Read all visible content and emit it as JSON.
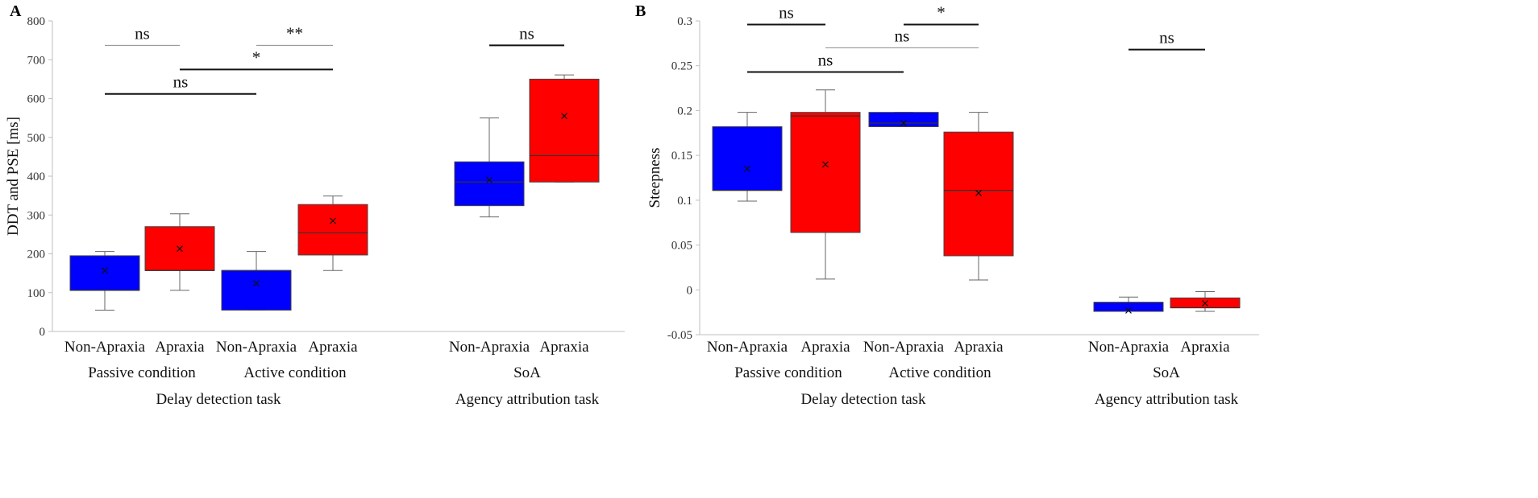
{
  "colors": {
    "non_apraxia": "#0000ff",
    "apraxia": "#ff0000",
    "axis": "#bfbfbf",
    "text": "#111111"
  },
  "chart_data": [
    {
      "panel_label": "A",
      "type": "boxplot",
      "ylabel": "DDT and PSE [ms]",
      "ylim": [
        0,
        800
      ],
      "yticks": [
        "0",
        "100",
        "200",
        "300",
        "400",
        "500",
        "600",
        "700",
        "800"
      ],
      "ytick_values": [
        0,
        100,
        200,
        300,
        400,
        500,
        600,
        700,
        800
      ],
      "categories": [
        "Non-Apraxia",
        "Apraxia",
        "Non-Apraxia",
        "Apraxia",
        "Non-Apraxia",
        "Apraxia"
      ],
      "conditions": [
        "Passive condition",
        "Active condition",
        "SoA"
      ],
      "tasks": [
        "Delay detection task",
        "Agency attribution task"
      ],
      "boxes": [
        {
          "group": "Non-Apraxia",
          "whisker_low": 55,
          "q1": 106,
          "median": 106,
          "q3": 195,
          "whisker_high": 206,
          "mean": 157
        },
        {
          "group": "Apraxia",
          "whisker_low": 106,
          "q1": 157,
          "median": 157,
          "q3": 270,
          "whisker_high": 303,
          "mean": 213
        },
        {
          "group": "Non-Apraxia",
          "whisker_low": 55,
          "q1": 55,
          "median": 157,
          "q3": 157,
          "whisker_high": 206,
          "mean": 124
        },
        {
          "group": "Apraxia",
          "whisker_low": 157,
          "q1": 197,
          "median": 254,
          "q3": 327,
          "whisker_high": 349,
          "mean": 285
        },
        {
          "group": "Non-Apraxia",
          "whisker_low": 295,
          "q1": 324,
          "median": 385,
          "q3": 437,
          "whisker_high": 550,
          "mean": 390
        },
        {
          "group": "Apraxia",
          "whisker_low": 385,
          "q1": 385,
          "median": 453,
          "q3": 650,
          "whisker_high": 661,
          "mean": 555
        }
      ],
      "comparisons": [
        {
          "from": 0,
          "to": 1,
          "y": 737,
          "label": "ns",
          "color": "#8c8c8c"
        },
        {
          "from": 2,
          "to": 3,
          "y": 737,
          "label": "**",
          "color": "#8c8c8c"
        },
        {
          "from": 1,
          "to": 3,
          "y": 675,
          "label": "*",
          "color": "#111111"
        },
        {
          "from": 0,
          "to": 2,
          "y": 612,
          "label": "ns",
          "color": "#111111"
        },
        {
          "from": 4,
          "to": 5,
          "y": 737,
          "label": "ns",
          "color": "#111111"
        }
      ]
    },
    {
      "panel_label": "B",
      "type": "boxplot",
      "ylabel": "Steepness",
      "ylim": [
        -0.05,
        0.3
      ],
      "yticks": [
        "-0.05",
        "0",
        "0.05",
        "0.1",
        "0.15",
        "0.2",
        "0.25",
        "0.3"
      ],
      "ytick_values": [
        -0.05,
        0,
        0.05,
        0.1,
        0.15,
        0.2,
        0.25,
        0.3
      ],
      "categories": [
        "Non-Apraxia",
        "Apraxia",
        "Non-Apraxia",
        "Apraxia",
        "Non-Apraxia",
        "Apraxia"
      ],
      "conditions": [
        "Passive condition",
        "Active condition",
        "SoA"
      ],
      "tasks": [
        "Delay detection task",
        "Agency attribution task"
      ],
      "boxes": [
        {
          "group": "Non-Apraxia",
          "whisker_low": 0.099,
          "q1": 0.111,
          "median": 0.111,
          "q3": 0.182,
          "whisker_high": 0.198,
          "mean": 0.135
        },
        {
          "group": "Apraxia",
          "whisker_low": 0.012,
          "q1": 0.064,
          "median": 0.194,
          "q3": 0.198,
          "whisker_high": 0.223,
          "mean": 0.14
        },
        {
          "group": "Non-Apraxia",
          "whisker_low": 0.182,
          "q1": 0.182,
          "median": 0.186,
          "q3": 0.198,
          "whisker_high": 0.198,
          "mean": 0.186
        },
        {
          "group": "Apraxia",
          "whisker_low": 0.011,
          "q1": 0.038,
          "median": 0.111,
          "q3": 0.176,
          "whisker_high": 0.198,
          "mean": 0.108
        },
        {
          "group": "Non-Apraxia",
          "whisker_low": -0.024,
          "q1": -0.024,
          "median": -0.014,
          "q3": -0.014,
          "whisker_high": -0.008,
          "mean": -0.023
        },
        {
          "group": "Apraxia",
          "whisker_low": -0.024,
          "q1": -0.02,
          "median": -0.02,
          "q3": -0.009,
          "whisker_high": -0.002,
          "mean": -0.015
        }
      ],
      "comparisons": [
        {
          "from": 0,
          "to": 1,
          "y": 0.296,
          "label": "ns",
          "color": "#111111"
        },
        {
          "from": 2,
          "to": 3,
          "y": 0.296,
          "label": "*",
          "color": "#111111"
        },
        {
          "from": 1,
          "to": 3,
          "y": 0.27,
          "label": "ns",
          "color": "#8c8c8c"
        },
        {
          "from": 0,
          "to": 2,
          "y": 0.243,
          "label": "ns",
          "color": "#111111"
        },
        {
          "from": 4,
          "to": 5,
          "y": 0.268,
          "label": "ns",
          "color": "#111111"
        }
      ]
    }
  ]
}
